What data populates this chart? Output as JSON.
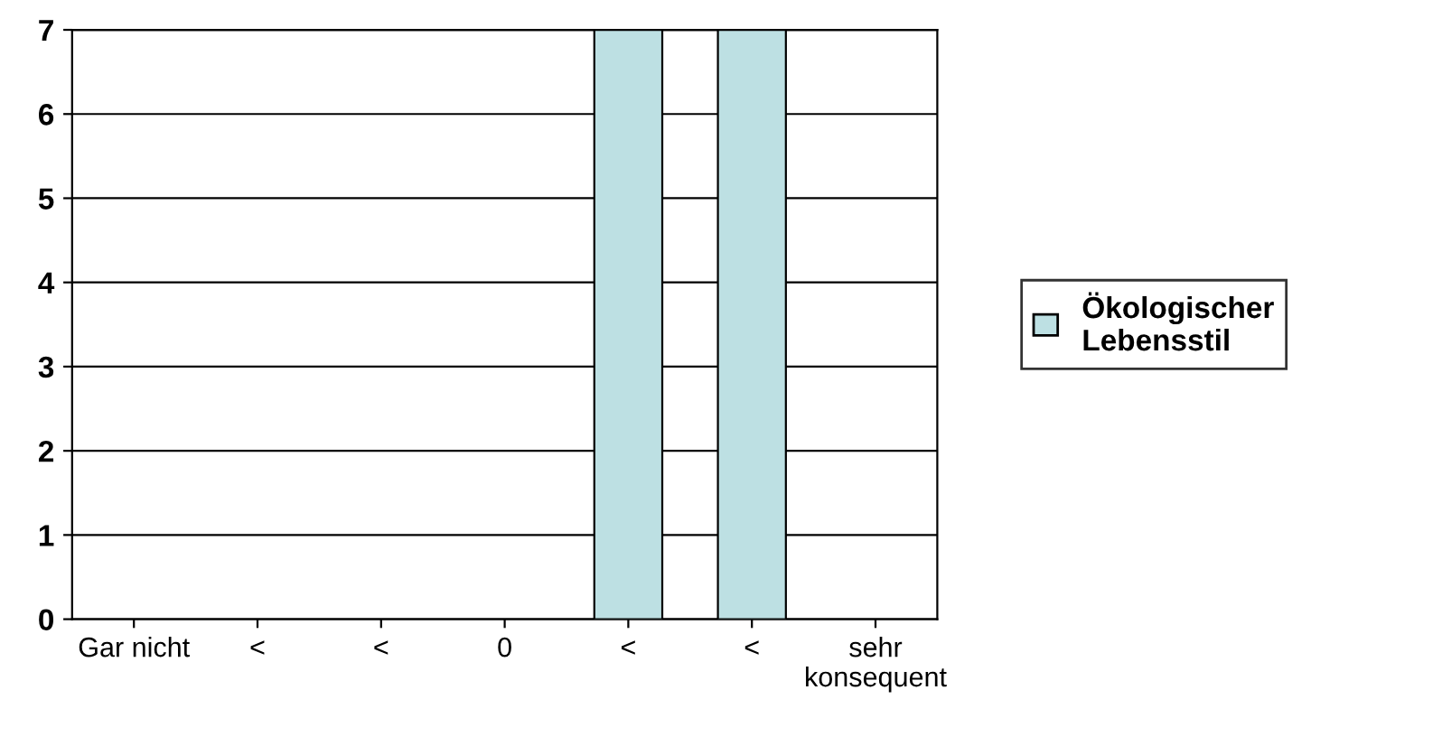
{
  "chart_data": {
    "type": "bar",
    "categories": [
      "Gar nicht",
      "<",
      "<",
      "0",
      "<",
      "<",
      "sehr\nkonsequent"
    ],
    "series": [
      {
        "name": "Ökologischer\nLebensstil",
        "color": "#bde0e3",
        "values": [
          0,
          0,
          0,
          0,
          7,
          7,
          0
        ]
      }
    ],
    "ylim": [
      0,
      7
    ],
    "yticks": [
      0,
      1,
      2,
      3,
      4,
      5,
      6,
      7
    ],
    "grid": "y",
    "legend": "right"
  }
}
